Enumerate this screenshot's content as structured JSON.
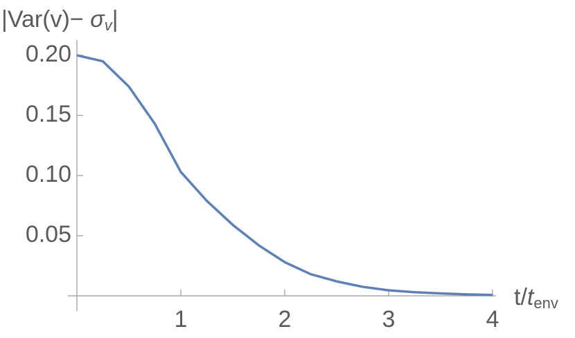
{
  "chart_data": {
    "type": "line",
    "ylabel": {
      "prefix": "|Var(v)− ",
      "symbol": "σ",
      "sub": "v",
      "suffix": "|"
    },
    "xlabel": {
      "prefix": "t/",
      "symbol": "t",
      "sub": "env"
    },
    "x": [
      0,
      0.25,
      0.5,
      0.75,
      1,
      1.25,
      1.5,
      1.75,
      2,
      2.25,
      2.5,
      2.75,
      3,
      3.25,
      3.5,
      3.75,
      4
    ],
    "series": [
      {
        "color": "#5e81b5",
        "values": [
          0.2,
          0.195,
          0.174,
          0.143,
          0.103,
          0.079,
          0.059,
          0.042,
          0.028,
          0.018,
          0.012,
          0.0075,
          0.0046,
          0.003,
          0.002,
          0.0012,
          0.0007
        ]
      }
    ],
    "xlim": [
      0,
      4
    ],
    "ylim": [
      0,
      0.2
    ],
    "xticks": [
      1,
      2,
      3,
      4
    ],
    "yticks": [
      0.05,
      {
        "value": 0.1,
        "label": "0.10"
      },
      0.15,
      {
        "value": 0.2,
        "label": "0.20"
      }
    ]
  }
}
